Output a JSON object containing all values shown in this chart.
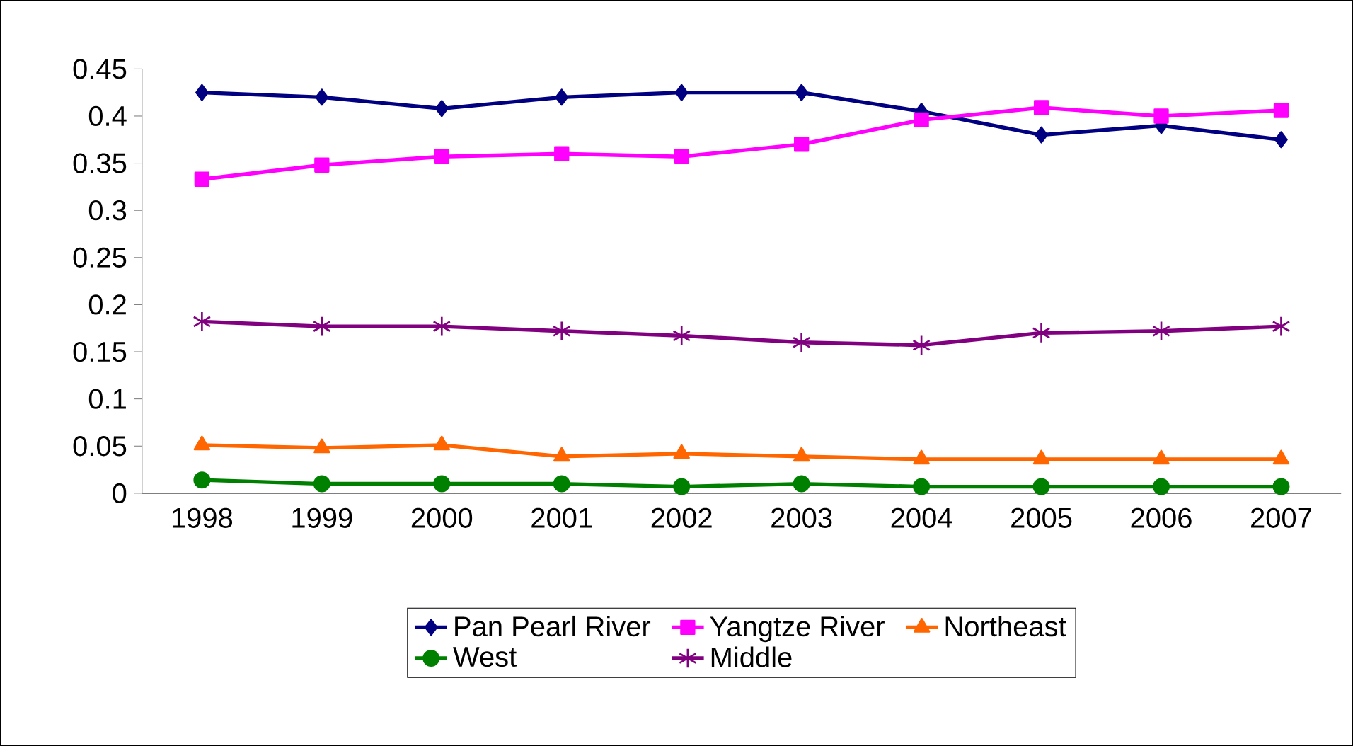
{
  "chart_data": {
    "type": "line",
    "categories": [
      "1998",
      "1999",
      "2000",
      "2001",
      "2002",
      "2003",
      "2004",
      "2005",
      "2006",
      "2007"
    ],
    "ylim": [
      0,
      0.45
    ],
    "yticks": [
      0,
      0.05,
      0.1,
      0.15,
      0.2,
      0.25,
      0.3,
      0.35,
      0.4,
      0.45
    ],
    "grid": false,
    "legend": "bottom",
    "series": [
      {
        "name": "Pan Pearl River",
        "color": "#000080",
        "marker": "diamond",
        "values": [
          0.425,
          0.42,
          0.408,
          0.42,
          0.425,
          0.425,
          0.405,
          0.38,
          0.39,
          0.375
        ]
      },
      {
        "name": "Yangtze River",
        "color": "#ff00ff",
        "marker": "square",
        "values": [
          0.333,
          0.348,
          0.357,
          0.36,
          0.357,
          0.37,
          0.396,
          0.409,
          0.4,
          0.406
        ]
      },
      {
        "name": "Northeast",
        "color": "#ff6600",
        "marker": "triangle",
        "values": [
          0.051,
          0.048,
          0.051,
          0.039,
          0.042,
          0.039,
          0.036,
          0.036,
          0.036,
          0.036
        ]
      },
      {
        "name": "West",
        "color": "#008000",
        "marker": "circle",
        "values": [
          0.014,
          0.01,
          0.01,
          0.01,
          0.007,
          0.01,
          0.007,
          0.007,
          0.007,
          0.007
        ]
      },
      {
        "name": "Middle",
        "color": "#800080",
        "marker": "cross",
        "values": [
          0.182,
          0.177,
          0.177,
          0.172,
          0.167,
          0.16,
          0.157,
          0.17,
          0.172,
          0.177
        ]
      }
    ]
  }
}
